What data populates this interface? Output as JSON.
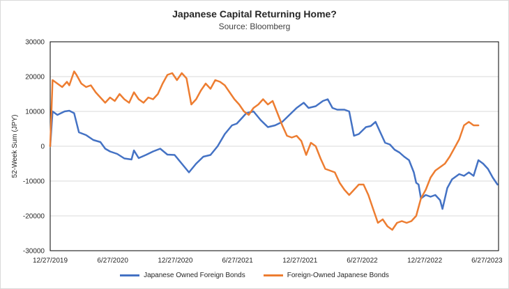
{
  "chart_data": {
    "type": "line",
    "title": "Japanese Capital Returning Home?",
    "subtitle": "Source: Bloomberg",
    "xlabel": "",
    "ylabel": "52-Week Sum (JPY)",
    "ylim": [
      -30000,
      30000
    ],
    "yticks": [
      30000,
      20000,
      10000,
      0,
      -10000,
      -20000,
      -30000
    ],
    "xlim": [
      "2019-12-27",
      "2023-07-31"
    ],
    "xticks": [
      "12/27/2019",
      "6/27/2020",
      "12/27/2020",
      "6/27/2021",
      "12/27/2021",
      "6/27/2022",
      "12/27/2022",
      "6/27/2023"
    ],
    "grid": true,
    "legend": "bottom",
    "series": [
      {
        "name": "Japanese Owned Foreign Bonds",
        "color": "#4472C4",
        "points": [
          [
            "2019-12-27",
            0
          ],
          [
            "2020-01-03",
            10000
          ],
          [
            "2020-01-17",
            9000
          ],
          [
            "2020-02-07",
            10000
          ],
          [
            "2020-02-21",
            10200
          ],
          [
            "2020-03-06",
            9500
          ],
          [
            "2020-03-20",
            4000
          ],
          [
            "2020-04-10",
            3200
          ],
          [
            "2020-05-01",
            1800
          ],
          [
            "2020-05-22",
            1200
          ],
          [
            "2020-06-05",
            -700
          ],
          [
            "2020-06-19",
            -1500
          ],
          [
            "2020-07-10",
            -2200
          ],
          [
            "2020-07-31",
            -3500
          ],
          [
            "2020-08-21",
            -3800
          ],
          [
            "2020-08-28",
            -1200
          ],
          [
            "2020-09-11",
            -3400
          ],
          [
            "2020-10-02",
            -2500
          ],
          [
            "2020-10-23",
            -1500
          ],
          [
            "2020-11-13",
            -700
          ],
          [
            "2020-12-04",
            -2400
          ],
          [
            "2020-12-25",
            -2500
          ],
          [
            "2021-01-15",
            -5000
          ],
          [
            "2021-02-05",
            -7500
          ],
          [
            "2021-02-26",
            -5000
          ],
          [
            "2021-03-19",
            -3000
          ],
          [
            "2021-04-09",
            -2500
          ],
          [
            "2021-04-30",
            0
          ],
          [
            "2021-05-21",
            3500
          ],
          [
            "2021-06-11",
            6000
          ],
          [
            "2021-06-25",
            6500
          ],
          [
            "2021-07-09",
            8000
          ],
          [
            "2021-07-23",
            9500
          ],
          [
            "2021-08-13",
            10000
          ],
          [
            "2021-09-03",
            7500
          ],
          [
            "2021-09-24",
            5500
          ],
          [
            "2021-10-15",
            6000
          ],
          [
            "2021-11-05",
            7000
          ],
          [
            "2021-11-26",
            9000
          ],
          [
            "2021-12-17",
            11000
          ],
          [
            "2022-01-07",
            12500
          ],
          [
            "2022-01-21",
            11000
          ],
          [
            "2022-02-11",
            11500
          ],
          [
            "2022-03-04",
            13000
          ],
          [
            "2022-03-18",
            13500
          ],
          [
            "2022-04-01",
            11000
          ],
          [
            "2022-04-15",
            10500
          ],
          [
            "2022-05-06",
            10500
          ],
          [
            "2022-05-20",
            10000
          ],
          [
            "2022-06-03",
            3000
          ],
          [
            "2022-06-17",
            3500
          ],
          [
            "2022-07-08",
            5500
          ],
          [
            "2022-07-22",
            5800
          ],
          [
            "2022-08-05",
            7000
          ],
          [
            "2022-08-19",
            4000
          ],
          [
            "2022-09-02",
            1000
          ],
          [
            "2022-09-16",
            500
          ],
          [
            "2022-09-30",
            -1000
          ],
          [
            "2022-10-14",
            -1800
          ],
          [
            "2022-10-28",
            -3000
          ],
          [
            "2022-11-11",
            -4000
          ],
          [
            "2022-11-25",
            -7500
          ],
          [
            "2022-12-02",
            -10500
          ],
          [
            "2022-12-09",
            -11000
          ],
          [
            "2022-12-16",
            -15000
          ],
          [
            "2022-12-30",
            -14000
          ],
          [
            "2023-01-13",
            -14500
          ],
          [
            "2023-01-27",
            -14000
          ],
          [
            "2023-02-10",
            -15500
          ],
          [
            "2023-02-17",
            -18000
          ],
          [
            "2023-03-03",
            -12000
          ],
          [
            "2023-03-17",
            -9500
          ],
          [
            "2023-04-07",
            -8000
          ],
          [
            "2023-04-21",
            -8500
          ],
          [
            "2023-05-05",
            -7500
          ],
          [
            "2023-05-19",
            -8500
          ],
          [
            "2023-06-02",
            -4000
          ],
          [
            "2023-06-16",
            -5000
          ],
          [
            "2023-06-30",
            -6500
          ],
          [
            "2023-07-14",
            -9000
          ],
          [
            "2023-07-28",
            -11000
          ]
        ]
      },
      {
        "name": "Foreign-Owned Japanese Bonds",
        "color": "#ED7D31",
        "points": [
          [
            "2019-12-27",
            0
          ],
          [
            "2020-01-03",
            19000
          ],
          [
            "2020-01-17",
            18000
          ],
          [
            "2020-01-31",
            17000
          ],
          [
            "2020-02-14",
            18500
          ],
          [
            "2020-02-21",
            17500
          ],
          [
            "2020-03-06",
            21500
          ],
          [
            "2020-03-13",
            20500
          ],
          [
            "2020-03-27",
            18000
          ],
          [
            "2020-04-10",
            17000
          ],
          [
            "2020-04-24",
            17500
          ],
          [
            "2020-05-08",
            15500
          ],
          [
            "2020-05-22",
            14000
          ],
          [
            "2020-06-05",
            12500
          ],
          [
            "2020-06-19",
            14000
          ],
          [
            "2020-07-03",
            13000
          ],
          [
            "2020-07-17",
            15000
          ],
          [
            "2020-07-31",
            13500
          ],
          [
            "2020-08-14",
            12500
          ],
          [
            "2020-08-28",
            15500
          ],
          [
            "2020-09-11",
            13500
          ],
          [
            "2020-09-25",
            12500
          ],
          [
            "2020-10-09",
            14000
          ],
          [
            "2020-10-23",
            13500
          ],
          [
            "2020-11-06",
            15000
          ],
          [
            "2020-11-20",
            18000
          ],
          [
            "2020-12-04",
            20500
          ],
          [
            "2020-12-18",
            21000
          ],
          [
            "2021-01-01",
            19000
          ],
          [
            "2021-01-15",
            21000
          ],
          [
            "2021-01-29",
            19500
          ],
          [
            "2021-02-12",
            12000
          ],
          [
            "2021-02-26",
            13500
          ],
          [
            "2021-03-12",
            16000
          ],
          [
            "2021-03-26",
            18000
          ],
          [
            "2021-04-09",
            16500
          ],
          [
            "2021-04-23",
            19000
          ],
          [
            "2021-05-07",
            18500
          ],
          [
            "2021-05-21",
            17500
          ],
          [
            "2021-06-04",
            15500
          ],
          [
            "2021-06-18",
            13500
          ],
          [
            "2021-07-02",
            12000
          ],
          [
            "2021-07-16",
            10000
          ],
          [
            "2021-07-30",
            9000
          ],
          [
            "2021-08-13",
            11000
          ],
          [
            "2021-08-27",
            12000
          ],
          [
            "2021-09-10",
            13500
          ],
          [
            "2021-09-24",
            12000
          ],
          [
            "2021-10-08",
            13000
          ],
          [
            "2021-10-22",
            9500
          ],
          [
            "2021-11-05",
            6000
          ],
          [
            "2021-11-19",
            3000
          ],
          [
            "2021-12-03",
            2500
          ],
          [
            "2021-12-17",
            3000
          ],
          [
            "2021-12-31",
            1500
          ],
          [
            "2022-01-14",
            -2500
          ],
          [
            "2022-01-28",
            1000
          ],
          [
            "2022-02-11",
            0
          ],
          [
            "2022-02-25",
            -3500
          ],
          [
            "2022-03-11",
            -6500
          ],
          [
            "2022-03-25",
            -7000
          ],
          [
            "2022-04-08",
            -7500
          ],
          [
            "2022-04-22",
            -10500
          ],
          [
            "2022-05-06",
            -12500
          ],
          [
            "2022-05-20",
            -14000
          ],
          [
            "2022-06-03",
            -12500
          ],
          [
            "2022-06-17",
            -11000
          ],
          [
            "2022-07-01",
            -11000
          ],
          [
            "2022-07-15",
            -14000
          ],
          [
            "2022-07-29",
            -18000
          ],
          [
            "2022-08-12",
            -22000
          ],
          [
            "2022-08-26",
            -21000
          ],
          [
            "2022-09-09",
            -23000
          ],
          [
            "2022-09-23",
            -24000
          ],
          [
            "2022-10-07",
            -22000
          ],
          [
            "2022-10-21",
            -21500
          ],
          [
            "2022-11-04",
            -22000
          ],
          [
            "2022-11-18",
            -21500
          ],
          [
            "2022-12-02",
            -20000
          ],
          [
            "2022-12-16",
            -15000
          ],
          [
            "2022-12-30",
            -12500
          ],
          [
            "2023-01-13",
            -9000
          ],
          [
            "2023-01-27",
            -7000
          ],
          [
            "2023-02-10",
            -6000
          ],
          [
            "2023-02-24",
            -5000
          ],
          [
            "2023-03-10",
            -3000
          ],
          [
            "2023-03-24",
            -500
          ],
          [
            "2023-04-07",
            2000
          ],
          [
            "2023-04-21",
            6000
          ],
          [
            "2023-05-05",
            7000
          ],
          [
            "2023-05-19",
            6000
          ],
          [
            "2023-06-02",
            6000
          ]
        ]
      }
    ]
  }
}
